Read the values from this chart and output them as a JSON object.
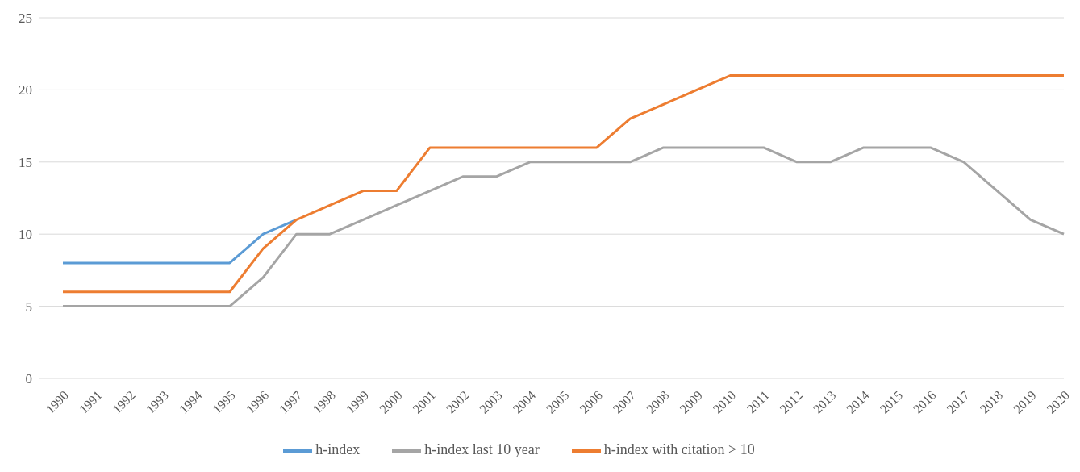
{
  "chart_data": {
    "type": "line",
    "categories": [
      "1990",
      "1991",
      "1992",
      "1993",
      "1994",
      "1995",
      "1996",
      "1997",
      "1998",
      "1999",
      "2000",
      "2001",
      "2002",
      "2003",
      "2004",
      "2005",
      "2006",
      "2007",
      "2008",
      "2009",
      "2010",
      "2011",
      "2012",
      "2013",
      "2014",
      "2015",
      "2016",
      "2017",
      "2018",
      "2019",
      "2020"
    ],
    "series": [
      {
        "name": "h-index",
        "color": "#5b9bd5",
        "values": [
          8,
          8,
          8,
          8,
          8,
          8,
          10,
          11,
          null,
          null,
          null,
          null,
          null,
          null,
          null,
          null,
          null,
          null,
          null,
          null,
          null,
          null,
          null,
          null,
          null,
          null,
          null,
          null,
          null,
          null,
          null
        ]
      },
      {
        "name": "h-index with citation > 10",
        "color": "#ed7d31",
        "values": [
          6,
          6,
          6,
          6,
          6,
          6,
          9,
          11,
          12,
          13,
          13,
          16,
          16,
          16,
          16,
          16,
          16,
          18,
          19,
          20,
          21,
          21,
          21,
          21,
          21,
          21,
          21,
          21,
          21,
          21,
          21
        ]
      },
      {
        "name": "h-index last 10 year",
        "color": "#a5a5a5",
        "values": [
          5,
          5,
          5,
          5,
          5,
          5,
          7,
          10,
          10,
          11,
          12,
          13,
          14,
          14,
          15,
          15,
          15,
          15,
          16,
          16,
          16,
          16,
          15,
          15,
          16,
          16,
          16,
          15,
          13,
          11,
          10
        ]
      }
    ],
    "ylim": [
      0,
      25
    ],
    "yticks": [
      0,
      5,
      10,
      15,
      20,
      25
    ],
    "grid": "y",
    "legend": "bottom",
    "marker": "none",
    "line_style": "solid"
  }
}
